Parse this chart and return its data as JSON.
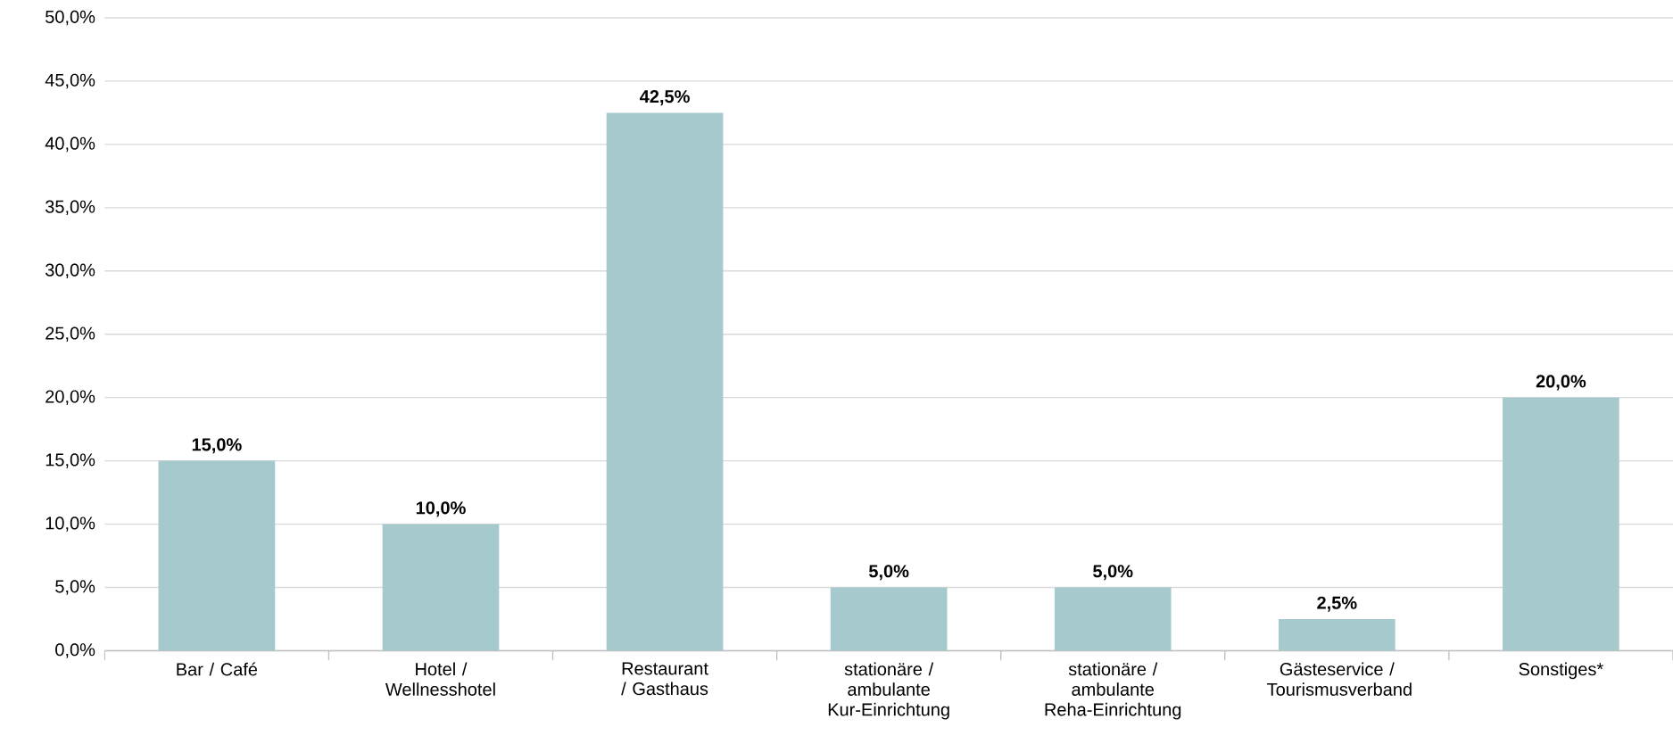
{
  "chart_data": {
    "type": "bar",
    "categories": [
      "Bar / Café",
      "Hotel / Wellnesshotel",
      "Restaurant / Gasthaus",
      "stationäre / ambulante Kur-Einrichtung",
      "stationäre / ambulante Reha-Einrichtung",
      "Gästeservice / Tourismusverband",
      "Sonstiges*"
    ],
    "values": [
      15.0,
      10.0,
      42.5,
      5.0,
      5.0,
      2.5,
      20.0
    ],
    "value_labels": [
      "15,0%",
      "10,0%",
      "42,5%",
      "5,0%",
      "5,0%",
      "2,5%",
      "20,0%"
    ],
    "color": "#a6c9ce",
    "ylim": [
      0,
      50
    ],
    "yticks": [
      {
        "value": 0,
        "label": "0,0%"
      },
      {
        "value": 5,
        "label": "5,0%"
      },
      {
        "value": 10,
        "label": "10,0%"
      },
      {
        "value": 15,
        "label": "15,0%"
      },
      {
        "value": 20,
        "label": "20,0%"
      },
      {
        "value": 25,
        "label": "25,0%"
      },
      {
        "value": 30,
        "label": "30,0%"
      },
      {
        "value": 35,
        "label": "35,0%"
      },
      {
        "value": 40,
        "label": "40,0%"
      },
      {
        "value": 45,
        "label": "45,0%"
      },
      {
        "value": 50,
        "label": "50,0%"
      }
    ],
    "grid": "y"
  }
}
